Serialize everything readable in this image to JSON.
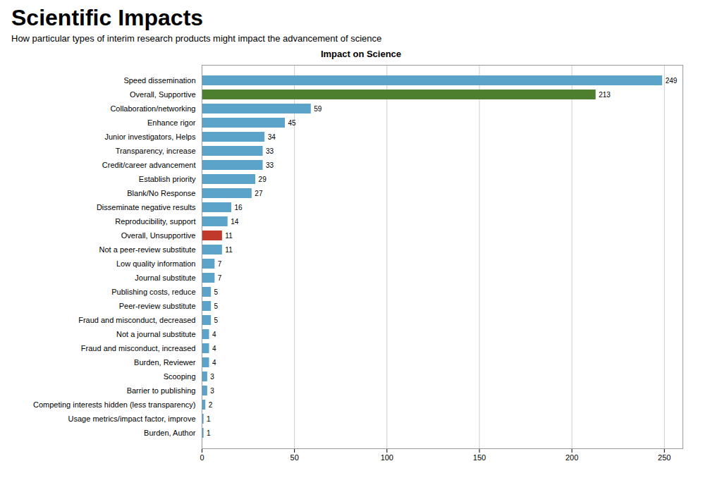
{
  "title": "Scientific Impacts",
  "subtitle": "How particular types of interim research products might impact the advancement of science",
  "chart_data": {
    "type": "bar",
    "orientation": "horizontal",
    "title": "Impact on Science",
    "categories": [
      "Speed dissemination",
      "Overall, Supportive",
      "Collaboration/networking",
      "Enhance rigor",
      "Junior investigators, Helps",
      "Transparency, increase",
      "Credit/career advancement",
      "Establish priority",
      "Blank/No Response",
      "Disseminate negative results",
      "Reproducibility, support",
      "Overall, Unsupportive",
      "Not a peer-review substitute",
      "Low quality information",
      "Journal substitute",
      "Publishing costs, reduce",
      "Peer-review substitute",
      "Fraud and misconduct, decreased",
      "Not a journal substitute",
      "Fraud and misconduct, increased",
      "Burden, Reviewer",
      "Scooping",
      "Barrier to publishing",
      "Competing interests hidden (less transparency)",
      "Usage metrics/impact factor, improve",
      "Burden, Author"
    ],
    "values": [
      249,
      213,
      59,
      45,
      34,
      33,
      33,
      29,
      27,
      16,
      14,
      11,
      11,
      7,
      7,
      5,
      5,
      5,
      4,
      4,
      4,
      3,
      3,
      2,
      1,
      1
    ],
    "colors": [
      "#5BA3C9",
      "#4E7F2E",
      "#5BA3C9",
      "#5BA3C9",
      "#5BA3C9",
      "#5BA3C9",
      "#5BA3C9",
      "#5BA3C9",
      "#5BA3C9",
      "#5BA3C9",
      "#5BA3C9",
      "#C0392B",
      "#5BA3C9",
      "#5BA3C9",
      "#5BA3C9",
      "#5BA3C9",
      "#5BA3C9",
      "#5BA3C9",
      "#5BA3C9",
      "#5BA3C9",
      "#5BA3C9",
      "#5BA3C9",
      "#5BA3C9",
      "#5BA3C9",
      "#5BA3C9",
      "#5BA3C9"
    ],
    "xlim": [
      0,
      260
    ],
    "xticks": [
      0,
      50,
      100,
      150,
      200,
      250
    ],
    "grid": true,
    "data_labels": true
  }
}
